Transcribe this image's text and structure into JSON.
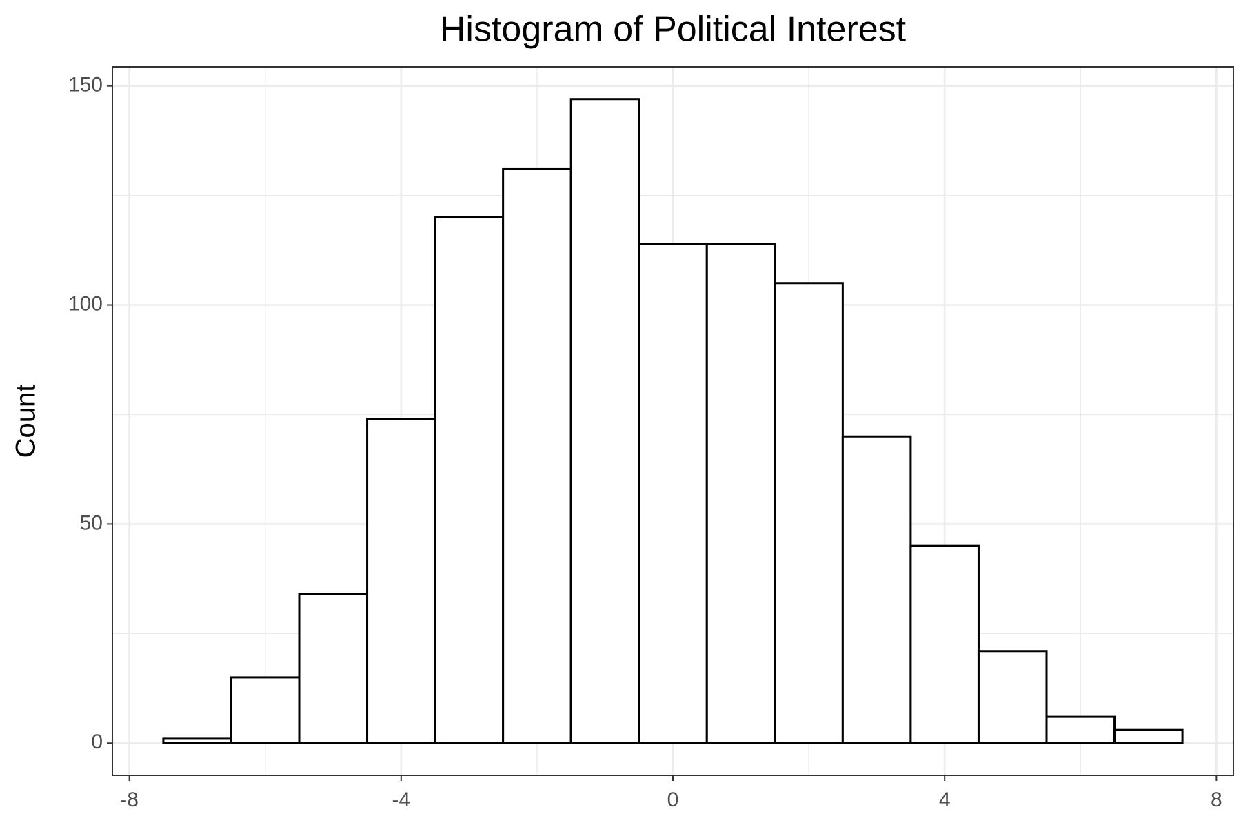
{
  "chart_data": {
    "type": "histogram",
    "title": "Histogram of Political Interest",
    "y_label": "Count",
    "bins": [
      -7.5,
      -6.5,
      -5.5,
      -4.5,
      -3.5,
      -2.5,
      -1.5,
      -0.5,
      0.5,
      1.5,
      2.5,
      3.5,
      4.5,
      5.5,
      6.5,
      7.5
    ],
    "values": [
      1,
      15,
      34,
      74,
      120,
      131,
      147,
      114,
      114,
      105,
      70,
      45,
      21,
      6,
      3
    ],
    "color": "#ffffff",
    "edge_color": "#000000",
    "xlim": [
      -8.25,
      8.25
    ],
    "xticks": [
      -8,
      -4,
      0,
      4,
      8
    ],
    "x_minor_ticks": [
      -6,
      -2,
      2,
      6
    ],
    "ylim": [
      -7.35,
      154.35
    ],
    "yticks": [
      0,
      50,
      100,
      150
    ],
    "y_minor_ticks": [
      25,
      75,
      125
    ],
    "grid": true
  }
}
